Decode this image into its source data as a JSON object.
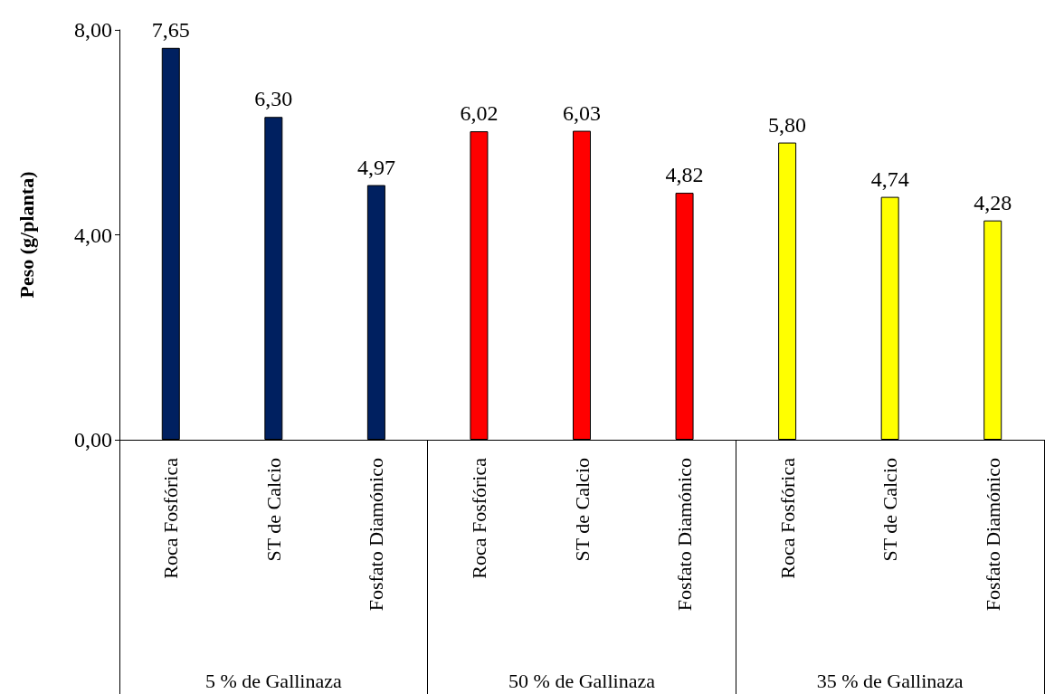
{
  "chart_data": {
    "type": "bar",
    "ylabel": "Peso (g/planta)",
    "categories": [
      "Roca Fosfórica",
      "ST de Calcio",
      "Fosfato Diamónico",
      "Roca Fosfórica",
      "ST de Calcio",
      "Fosfato Diamónico",
      "Roca Fosfórica",
      "ST de Calcio",
      "Fosfato Diamónico"
    ],
    "values": [
      7.65,
      6.3,
      4.97,
      6.02,
      6.03,
      4.82,
      5.8,
      4.74,
      4.28
    ],
    "value_labels": [
      "7,65",
      "6,30",
      "4,97",
      "6,02",
      "6,03",
      "4,82",
      "5,80",
      "4,74",
      "4,28"
    ],
    "colors": [
      "#002060",
      "#002060",
      "#002060",
      "#ff0000",
      "#ff0000",
      "#ff0000",
      "#ffff00",
      "#ffff00",
      "#ffff00"
    ],
    "ylim": [
      0,
      8
    ],
    "yticks": [
      {
        "value": 0,
        "label": "0,00"
      },
      {
        "value": 4,
        "label": "4,00"
      },
      {
        "value": 8,
        "label": "8,00"
      }
    ],
    "annotations": [
      "5 % de Gallinaza",
      "50 % de Gallinaza",
      "35 % de Gallinaza"
    ],
    "grid": false
  }
}
